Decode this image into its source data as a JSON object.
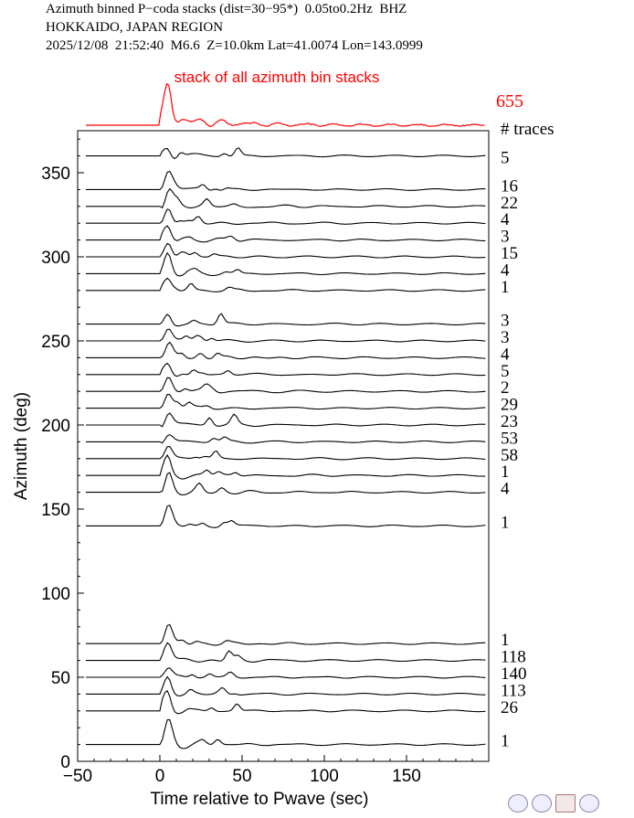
{
  "header": {
    "line1": "Azimuth binned P−coda stacks (dist=30−95*)  0.05to0.2Hz  BHZ",
    "line2": "HOKKAIDO, JAPAN REGION",
    "line3": "2025/12/08  21:52:40  M6.6  Z=10.0km Lat=41.0074 Lon=143.0999"
  },
  "colors": {
    "stack": "#ff0000",
    "trace": "#000000"
  },
  "chart_data": {
    "type": "line",
    "title": "Azimuth binned P−coda stacks (dist=30−95*)  0.05to0.2Hz  BHZ",
    "xlabel": "Time relative to Pwave (sec)",
    "ylabel": "Azimuth (deg)",
    "xlim": [
      -50,
      200
    ],
    "ylim": [
      0,
      375
    ],
    "xticks": [
      -50,
      0,
      50,
      100,
      150
    ],
    "yticks": [
      0,
      50,
      100,
      150,
      200,
      250,
      300,
      350
    ],
    "stack_label": "stack of all azimuth bin stacks",
    "stack_count": "655",
    "count_header": "# traces",
    "bins": [
      {
        "azimuth": 360,
        "count": "5"
      },
      {
        "azimuth": 340,
        "count": "16"
      },
      {
        "azimuth": 330,
        "count": "22"
      },
      {
        "azimuth": 320,
        "count": "4"
      },
      {
        "azimuth": 310,
        "count": "3"
      },
      {
        "azimuth": 300,
        "count": "15"
      },
      {
        "azimuth": 290,
        "count": "4"
      },
      {
        "azimuth": 280,
        "count": "1"
      },
      {
        "azimuth": 260,
        "count": "3"
      },
      {
        "azimuth": 250,
        "count": "3"
      },
      {
        "azimuth": 240,
        "count": "4"
      },
      {
        "azimuth": 230,
        "count": "5"
      },
      {
        "azimuth": 220,
        "count": "2"
      },
      {
        "azimuth": 210,
        "count": "29"
      },
      {
        "azimuth": 200,
        "count": "23"
      },
      {
        "azimuth": 190,
        "count": "53"
      },
      {
        "azimuth": 180,
        "count": "58"
      },
      {
        "azimuth": 170,
        "count": "1"
      },
      {
        "azimuth": 160,
        "count": "4"
      },
      {
        "azimuth": 140,
        "count": "1"
      },
      {
        "azimuth": 70,
        "count": "1"
      },
      {
        "azimuth": 60,
        "count": "118"
      },
      {
        "azimuth": 50,
        "count": "140"
      },
      {
        "azimuth": 40,
        "count": "113"
      },
      {
        "azimuth": 30,
        "count": "26"
      },
      {
        "azimuth": 10,
        "count": "1"
      }
    ]
  },
  "logos": [
    "nsf-logo-icon",
    "noaa-logo-icon",
    "cage-sage-logo-icon",
    "earthscope-logo-icon"
  ]
}
